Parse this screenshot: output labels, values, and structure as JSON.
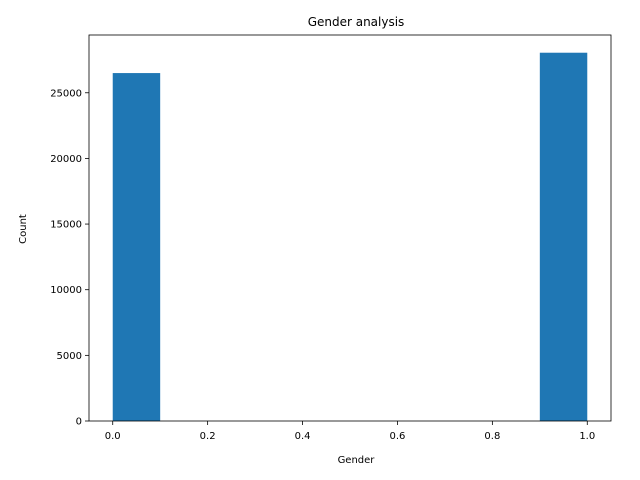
{
  "chart_data": {
    "type": "bar",
    "title": "Gender analysis",
    "xlabel": "Gender",
    "ylabel": "Count",
    "xlim": [
      -0.05,
      1.05
    ],
    "ylim": [
      0,
      29400
    ],
    "xticks": [
      0.0,
      0.2,
      0.4,
      0.6,
      0.8,
      1.0
    ],
    "xtick_labels": [
      "0.0",
      "0.2",
      "0.4",
      "0.6",
      "0.8",
      "1.0"
    ],
    "yticks": [
      0,
      5000,
      10000,
      15000,
      20000,
      25000
    ],
    "ytick_labels": [
      "0",
      "5000",
      "10000",
      "15000",
      "20000",
      "25000"
    ],
    "grid": false,
    "bins": [
      {
        "x0": 0.0,
        "x1": 0.1,
        "value": 26500
      },
      {
        "x0": 0.9,
        "x1": 1.0,
        "value": 28050
      }
    ],
    "bar_color": "#1f77b4"
  }
}
